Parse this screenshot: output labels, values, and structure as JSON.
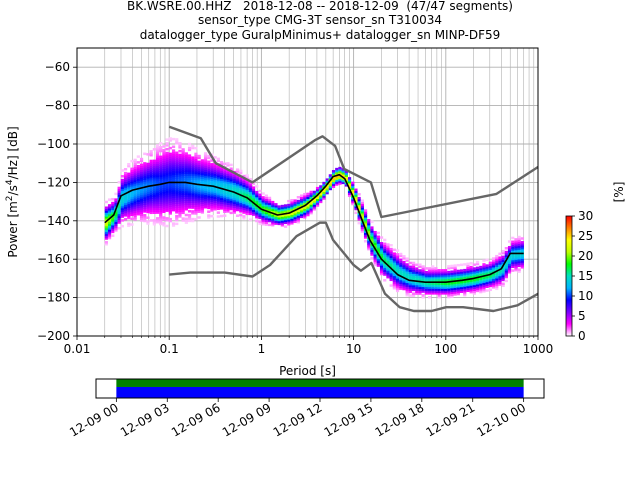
{
  "title_lines": [
    "BK.WSRE.00.HHZ   2018-12-08 -- 2018-12-09  (47/47 segments)",
    "sensor_type CMG-3T sensor_sn T310034",
    "datalogger_type GuralpMinimus+ datalogger_sn MINP-DF59"
  ],
  "chart_data": {
    "type": "heatmap",
    "title": "BK.WSRE.00.HHZ   2018-12-08 -- 2018-12-09  (47/47 segments)",
    "xlabel": "Period [s]",
    "ylabel_parts": [
      "Power [m",
      "2",
      "/s",
      "4",
      "/Hz] [dB]"
    ],
    "x_scale": "log",
    "xlim": [
      0.01,
      1000
    ],
    "ylim": [
      -200,
      -50
    ],
    "x_ticks": [
      0.01,
      0.1,
      1,
      10,
      100,
      1000
    ],
    "x_tick_labels": [
      "0.01",
      "0.1",
      "1",
      "10",
      "100",
      "1000"
    ],
    "y_ticks": [
      -200,
      -180,
      -160,
      -140,
      -120,
      -100,
      -80,
      -60
    ],
    "y_tick_labels": [
      "−200",
      "−180",
      "−160",
      "−140",
      "−120",
      "−100",
      "−80",
      "−60"
    ],
    "grid": true,
    "colorbar": {
      "label": "[%]",
      "range": [
        0,
        30
      ],
      "ticks": [
        0,
        5,
        10,
        15,
        20,
        25,
        30
      ],
      "tick_labels": [
        "0",
        "5",
        "10",
        "15",
        "20",
        "25",
        "30"
      ],
      "colors": [
        "#ffffff",
        "#ff00ff",
        "#7a00ff",
        "#0000ff",
        "#00b4ff",
        "#00e0c0",
        "#00ff00",
        "#c0ff00",
        "#ffff00",
        "#ff8000",
        "#ff0000"
      ]
    },
    "mode_curve": {
      "color": "#000000",
      "x": [
        0.02,
        0.025,
        0.03,
        0.04,
        0.06,
        0.08,
        0.1,
        0.15,
        0.2,
        0.3,
        0.5,
        0.7,
        1.0,
        1.5,
        2,
        3,
        4,
        5,
        6,
        7,
        8,
        10,
        12,
        15,
        20,
        30,
        40,
        60,
        80,
        100,
        150,
        200,
        300,
        400,
        500,
        700
      ],
      "y": [
        -141,
        -137,
        -127,
        -124,
        -122,
        -121,
        -120,
        -120,
        -121,
        -122,
        -125,
        -128,
        -134,
        -137,
        -136,
        -132,
        -127,
        -122,
        -117,
        -116,
        -118,
        -128,
        -138,
        -150,
        -160,
        -168,
        -171,
        -172,
        -172,
        -172,
        -171,
        -170,
        -168,
        -165,
        -157,
        -157
      ]
    },
    "nlnm": {
      "color": "#666666",
      "x": [
        0.1,
        0.17,
        0.4,
        0.8,
        1.24,
        2.4,
        4.3,
        5,
        6,
        10,
        12,
        15.6,
        21.9,
        31.6,
        45,
        70,
        101,
        154,
        328,
        600,
        1000
      ],
      "y": [
        -168,
        -167,
        -167,
        -169,
        -163,
        -148,
        -141,
        -141,
        -150,
        -163,
        -166,
        -162,
        -178,
        -185,
        -187,
        -187,
        -185,
        -185,
        -187,
        -184,
        -178
      ]
    },
    "nhnm": {
      "color": "#666666",
      "x": [
        0.1,
        0.22,
        0.32,
        0.8,
        3.8,
        4.6,
        6.3,
        7.9,
        15.4,
        20,
        354.8,
        1000
      ],
      "y": [
        -91,
        -97,
        -110,
        -120,
        -98,
        -96,
        -101,
        -113,
        -120,
        -138,
        -126,
        -112
      ]
    },
    "psd_density": [
      {
        "x": 0.02,
        "y": -141,
        "s": 6,
        "p": 22
      },
      {
        "x": 0.025,
        "y": -137,
        "s": 5,
        "p": 18
      },
      {
        "x": 0.03,
        "y": -128,
        "s": 9,
        "p": 14
      },
      {
        "x": 0.04,
        "y": -125,
        "s": 11,
        "p": 12
      },
      {
        "x": 0.06,
        "y": -122,
        "s": 13,
        "p": 11
      },
      {
        "x": 0.08,
        "y": -121,
        "s": 15,
        "p": 10
      },
      {
        "x": 0.1,
        "y": -120,
        "s": 16,
        "p": 10
      },
      {
        "x": 0.15,
        "y": -120,
        "s": 14,
        "p": 11
      },
      {
        "x": 0.2,
        "y": -121,
        "s": 12,
        "p": 12
      },
      {
        "x": 0.3,
        "y": -122,
        "s": 10,
        "p": 13
      },
      {
        "x": 0.5,
        "y": -125,
        "s": 8,
        "p": 15
      },
      {
        "x": 0.7,
        "y": -128,
        "s": 6,
        "p": 17
      },
      {
        "x": 1.0,
        "y": -134,
        "s": 4,
        "p": 19
      },
      {
        "x": 1.5,
        "y": -137,
        "s": 3,
        "p": 22
      },
      {
        "x": 2,
        "y": -136,
        "s": 3,
        "p": 23
      },
      {
        "x": 3,
        "y": -132,
        "s": 3,
        "p": 23
      },
      {
        "x": 4,
        "y": -127,
        "s": 2,
        "p": 24
      },
      {
        "x": 5,
        "y": -122,
        "s": 2,
        "p": 25
      },
      {
        "x": 6,
        "y": -117,
        "s": 2,
        "p": 26
      },
      {
        "x": 7,
        "y": -116,
        "s": 2,
        "p": 26
      },
      {
        "x": 8,
        "y": -118,
        "s": 2,
        "p": 25
      },
      {
        "x": 10,
        "y": -128,
        "s": 3,
        "p": 24
      },
      {
        "x": 12,
        "y": -138,
        "s": 4,
        "p": 22
      },
      {
        "x": 15,
        "y": -150,
        "s": 5,
        "p": 20
      },
      {
        "x": 20,
        "y": -160,
        "s": 6,
        "p": 17
      },
      {
        "x": 30,
        "y": -167,
        "s": 6,
        "p": 15
      },
      {
        "x": 40,
        "y": -170,
        "s": 5,
        "p": 15
      },
      {
        "x": 60,
        "y": -172,
        "s": 4,
        "p": 16
      },
      {
        "x": 80,
        "y": -172,
        "s": 4,
        "p": 17
      },
      {
        "x": 100,
        "y": -172,
        "s": 4,
        "p": 18
      },
      {
        "x": 150,
        "y": -171,
        "s": 4,
        "p": 18
      },
      {
        "x": 200,
        "y": -170,
        "s": 4,
        "p": 18
      },
      {
        "x": 300,
        "y": -168,
        "s": 4,
        "p": 17
      },
      {
        "x": 400,
        "y": -165,
        "s": 5,
        "p": 15
      },
      {
        "x": 500,
        "y": -158,
        "s": 5,
        "p": 14
      },
      {
        "x": 700,
        "y": -157,
        "s": 5,
        "p": 14
      }
    ]
  },
  "timeline": {
    "tick_labels": [
      "12-09 00",
      "12-09 03",
      "12-09 06",
      "12-09 09",
      "12-09 12",
      "12-09 15",
      "12-09 18",
      "12-09 21",
      "12-10 00"
    ],
    "tick_hours": [
      0,
      3,
      6,
      9,
      12,
      15,
      18,
      21,
      24
    ],
    "axis_range_hours": [
      -1.2,
      25.2
    ],
    "data_band": {
      "start_hour": 0,
      "end_hour": 24,
      "color": "#0000ff"
    },
    "segment_band": {
      "start_hour": 0,
      "end_hour": 24,
      "color": "#008000"
    }
  }
}
